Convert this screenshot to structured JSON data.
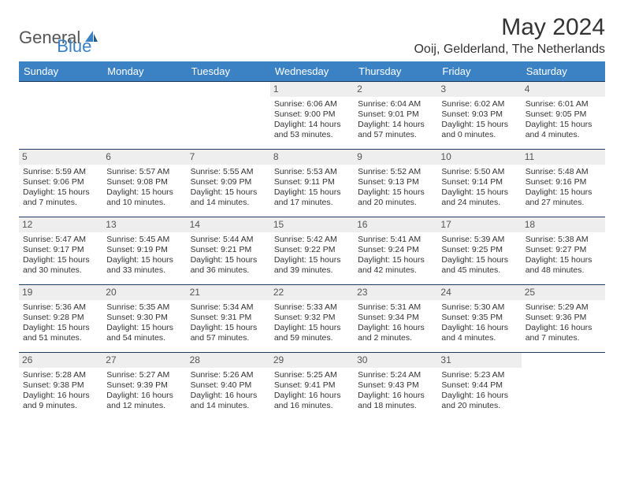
{
  "logo": {
    "text1": "General",
    "text2": "Blue"
  },
  "title": "May 2024",
  "location": "Ooij, Gelderland, The Netherlands",
  "colors": {
    "header_bg": "#3b82c4",
    "header_text": "#ffffff",
    "border": "#1f3a5f",
    "daynum_bg": "#eeeeee",
    "text": "#333333"
  },
  "weekdays": [
    "Sunday",
    "Monday",
    "Tuesday",
    "Wednesday",
    "Thursday",
    "Friday",
    "Saturday"
  ],
  "weeks": [
    [
      {
        "n": "",
        "sr": "",
        "ss": "",
        "dl": ""
      },
      {
        "n": "",
        "sr": "",
        "ss": "",
        "dl": ""
      },
      {
        "n": "",
        "sr": "",
        "ss": "",
        "dl": ""
      },
      {
        "n": "1",
        "sr": "Sunrise: 6:06 AM",
        "ss": "Sunset: 9:00 PM",
        "dl": "Daylight: 14 hours and 53 minutes."
      },
      {
        "n": "2",
        "sr": "Sunrise: 6:04 AM",
        "ss": "Sunset: 9:01 PM",
        "dl": "Daylight: 14 hours and 57 minutes."
      },
      {
        "n": "3",
        "sr": "Sunrise: 6:02 AM",
        "ss": "Sunset: 9:03 PM",
        "dl": "Daylight: 15 hours and 0 minutes."
      },
      {
        "n": "4",
        "sr": "Sunrise: 6:01 AM",
        "ss": "Sunset: 9:05 PM",
        "dl": "Daylight: 15 hours and 4 minutes."
      }
    ],
    [
      {
        "n": "5",
        "sr": "Sunrise: 5:59 AM",
        "ss": "Sunset: 9:06 PM",
        "dl": "Daylight: 15 hours and 7 minutes."
      },
      {
        "n": "6",
        "sr": "Sunrise: 5:57 AM",
        "ss": "Sunset: 9:08 PM",
        "dl": "Daylight: 15 hours and 10 minutes."
      },
      {
        "n": "7",
        "sr": "Sunrise: 5:55 AM",
        "ss": "Sunset: 9:09 PM",
        "dl": "Daylight: 15 hours and 14 minutes."
      },
      {
        "n": "8",
        "sr": "Sunrise: 5:53 AM",
        "ss": "Sunset: 9:11 PM",
        "dl": "Daylight: 15 hours and 17 minutes."
      },
      {
        "n": "9",
        "sr": "Sunrise: 5:52 AM",
        "ss": "Sunset: 9:13 PM",
        "dl": "Daylight: 15 hours and 20 minutes."
      },
      {
        "n": "10",
        "sr": "Sunrise: 5:50 AM",
        "ss": "Sunset: 9:14 PM",
        "dl": "Daylight: 15 hours and 24 minutes."
      },
      {
        "n": "11",
        "sr": "Sunrise: 5:48 AM",
        "ss": "Sunset: 9:16 PM",
        "dl": "Daylight: 15 hours and 27 minutes."
      }
    ],
    [
      {
        "n": "12",
        "sr": "Sunrise: 5:47 AM",
        "ss": "Sunset: 9:17 PM",
        "dl": "Daylight: 15 hours and 30 minutes."
      },
      {
        "n": "13",
        "sr": "Sunrise: 5:45 AM",
        "ss": "Sunset: 9:19 PM",
        "dl": "Daylight: 15 hours and 33 minutes."
      },
      {
        "n": "14",
        "sr": "Sunrise: 5:44 AM",
        "ss": "Sunset: 9:21 PM",
        "dl": "Daylight: 15 hours and 36 minutes."
      },
      {
        "n": "15",
        "sr": "Sunrise: 5:42 AM",
        "ss": "Sunset: 9:22 PM",
        "dl": "Daylight: 15 hours and 39 minutes."
      },
      {
        "n": "16",
        "sr": "Sunrise: 5:41 AM",
        "ss": "Sunset: 9:24 PM",
        "dl": "Daylight: 15 hours and 42 minutes."
      },
      {
        "n": "17",
        "sr": "Sunrise: 5:39 AM",
        "ss": "Sunset: 9:25 PM",
        "dl": "Daylight: 15 hours and 45 minutes."
      },
      {
        "n": "18",
        "sr": "Sunrise: 5:38 AM",
        "ss": "Sunset: 9:27 PM",
        "dl": "Daylight: 15 hours and 48 minutes."
      }
    ],
    [
      {
        "n": "19",
        "sr": "Sunrise: 5:36 AM",
        "ss": "Sunset: 9:28 PM",
        "dl": "Daylight: 15 hours and 51 minutes."
      },
      {
        "n": "20",
        "sr": "Sunrise: 5:35 AM",
        "ss": "Sunset: 9:30 PM",
        "dl": "Daylight: 15 hours and 54 minutes."
      },
      {
        "n": "21",
        "sr": "Sunrise: 5:34 AM",
        "ss": "Sunset: 9:31 PM",
        "dl": "Daylight: 15 hours and 57 minutes."
      },
      {
        "n": "22",
        "sr": "Sunrise: 5:33 AM",
        "ss": "Sunset: 9:32 PM",
        "dl": "Daylight: 15 hours and 59 minutes."
      },
      {
        "n": "23",
        "sr": "Sunrise: 5:31 AM",
        "ss": "Sunset: 9:34 PM",
        "dl": "Daylight: 16 hours and 2 minutes."
      },
      {
        "n": "24",
        "sr": "Sunrise: 5:30 AM",
        "ss": "Sunset: 9:35 PM",
        "dl": "Daylight: 16 hours and 4 minutes."
      },
      {
        "n": "25",
        "sr": "Sunrise: 5:29 AM",
        "ss": "Sunset: 9:36 PM",
        "dl": "Daylight: 16 hours and 7 minutes."
      }
    ],
    [
      {
        "n": "26",
        "sr": "Sunrise: 5:28 AM",
        "ss": "Sunset: 9:38 PM",
        "dl": "Daylight: 16 hours and 9 minutes."
      },
      {
        "n": "27",
        "sr": "Sunrise: 5:27 AM",
        "ss": "Sunset: 9:39 PM",
        "dl": "Daylight: 16 hours and 12 minutes."
      },
      {
        "n": "28",
        "sr": "Sunrise: 5:26 AM",
        "ss": "Sunset: 9:40 PM",
        "dl": "Daylight: 16 hours and 14 minutes."
      },
      {
        "n": "29",
        "sr": "Sunrise: 5:25 AM",
        "ss": "Sunset: 9:41 PM",
        "dl": "Daylight: 16 hours and 16 minutes."
      },
      {
        "n": "30",
        "sr": "Sunrise: 5:24 AM",
        "ss": "Sunset: 9:43 PM",
        "dl": "Daylight: 16 hours and 18 minutes."
      },
      {
        "n": "31",
        "sr": "Sunrise: 5:23 AM",
        "ss": "Sunset: 9:44 PM",
        "dl": "Daylight: 16 hours and 20 minutes."
      },
      {
        "n": "",
        "sr": "",
        "ss": "",
        "dl": ""
      }
    ]
  ]
}
